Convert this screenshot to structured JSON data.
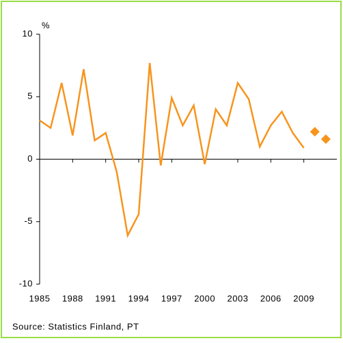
{
  "chart_data": {
    "type": "line",
    "y_unit_label": "%",
    "source": "Source: Statistics Finland, PT",
    "xlim": [
      1985,
      2012
    ],
    "xticks": [
      1985,
      1988,
      1991,
      1994,
      1997,
      2000,
      2003,
      2006,
      2009
    ],
    "ylim": [
      -10,
      10
    ],
    "yticks": [
      10,
      5,
      0,
      -5,
      -10
    ],
    "series": [
      {
        "color": "#f7941d",
        "marker": "none",
        "x": [
          1985,
          1986,
          1987,
          1988,
          1989,
          1990,
          1991,
          1992,
          1993,
          1994,
          1995,
          1996,
          1997,
          1998,
          1999,
          2000,
          2001,
          2002,
          2003,
          2004,
          2005,
          2006,
          2007,
          2008,
          2009
        ],
        "values": [
          3.1,
          2.5,
          6.1,
          1.9,
          7.2,
          1.5,
          2.1,
          -1.0,
          -6.1,
          -4.4,
          7.7,
          -0.5,
          4.9,
          2.7,
          4.3,
          -0.4,
          4.0,
          2.7,
          6.1,
          4.8,
          1.0,
          2.7,
          3.8,
          2.1,
          0.9
        ]
      },
      {
        "color": "#f7941d",
        "marker": "diamond",
        "x": [
          2010,
          2011
        ],
        "values": [
          2.2,
          1.6
        ]
      }
    ]
  }
}
